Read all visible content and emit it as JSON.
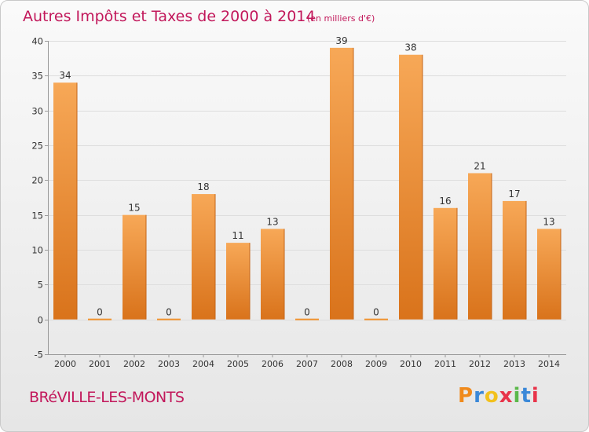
{
  "chart_data": {
    "type": "bar",
    "title": "Autres Impôts et Taxes de 2000 à 2014",
    "subtitle": "(en milliers d'€)",
    "categories": [
      "2000",
      "2001",
      "2002",
      "2003",
      "2004",
      "2005",
      "2006",
      "2007",
      "2008",
      "2009",
      "2010",
      "2011",
      "2012",
      "2013",
      "2014"
    ],
    "values": [
      34,
      0,
      15,
      0,
      18,
      11,
      13,
      0,
      39,
      0,
      38,
      16,
      21,
      17,
      13
    ],
    "ylim": [
      -5,
      40
    ],
    "yticks": [
      -5,
      0,
      5,
      10,
      15,
      20,
      25,
      30,
      35,
      40
    ],
    "grid": true,
    "bar_color": "#f0922e"
  },
  "commune": "BRéVILLE-LES-MONTS",
  "logo": {
    "letters": [
      "P",
      "r",
      "o",
      "x",
      "i",
      "t",
      "i"
    ],
    "colors": [
      "#f08a1c",
      "#3a88d8",
      "#f2c11d",
      "#e8344a",
      "#5bb84a",
      "#3a88d8",
      "#e8344a"
    ]
  }
}
